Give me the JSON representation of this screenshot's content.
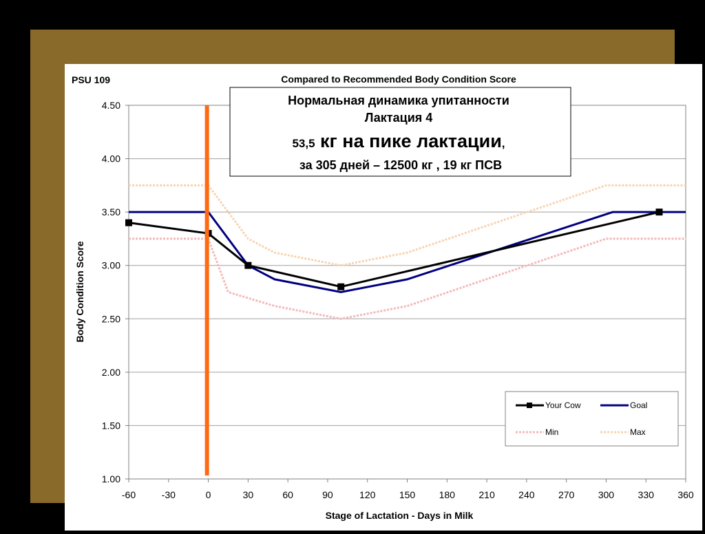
{
  "header": {
    "left_label": "PSU 109"
  },
  "info_box": {
    "line1": "Нормальная динамика упитанности",
    "line2": "Лактация 4",
    "line3_small": "53,5",
    "line3_big": " кг на пике лактации",
    "line3_comma": ",",
    "line4": "за 305 дней – 12500 кг , 19 кг ПСВ"
  },
  "colors": {
    "frame": "#8a6a2a",
    "your_cow": "#000000",
    "goal": "#000080",
    "min": "#f4b8b8",
    "max": "#f8d3b0",
    "marker_line": "#ff6a13",
    "grid": "#a0a0a0"
  },
  "chart_data": {
    "type": "line",
    "title": "Compared to Recommended Body Condition Score",
    "xlabel": "Stage of Lactation - Days in Milk",
    "ylabel": "Body Condition Score",
    "xlim": [
      -60,
      360
    ],
    "ylim": [
      1.0,
      4.5
    ],
    "x_ticks": [
      "-60",
      "-30",
      "0",
      "30",
      "60",
      "90",
      "120",
      "150",
      "180",
      "210",
      "240",
      "270",
      "300",
      "330",
      "360"
    ],
    "y_ticks": [
      "1.00",
      "1.50",
      "2.00",
      "2.50",
      "3.00",
      "3.50",
      "4.00",
      "4.50"
    ],
    "grid": "horizontal",
    "legend_position": "bottom-right",
    "vertical_marker_x": -1,
    "series": [
      {
        "name": "Min",
        "style": "dashed-light",
        "points": [
          [
            -60,
            3.25
          ],
          [
            0,
            3.25
          ],
          [
            15,
            2.75
          ],
          [
            50,
            2.62
          ],
          [
            100,
            2.5
          ],
          [
            150,
            2.62
          ],
          [
            300,
            3.25
          ],
          [
            360,
            3.25
          ]
        ]
      },
      {
        "name": "Max",
        "style": "dashed-light",
        "points": [
          [
            -60,
            3.75
          ],
          [
            0,
            3.75
          ],
          [
            30,
            3.25
          ],
          [
            50,
            3.12
          ],
          [
            100,
            3.0
          ],
          [
            150,
            3.12
          ],
          [
            300,
            3.75
          ],
          [
            360,
            3.75
          ]
        ]
      },
      {
        "name": "Goal",
        "style": "solid",
        "points": [
          [
            -60,
            3.5
          ],
          [
            0,
            3.5
          ],
          [
            30,
            3.0
          ],
          [
            50,
            2.87
          ],
          [
            100,
            2.75
          ],
          [
            150,
            2.87
          ],
          [
            305,
            3.5
          ],
          [
            360,
            3.5
          ]
        ]
      },
      {
        "name": "Your Cow",
        "style": "solid-marker",
        "points": [
          [
            -60,
            3.4
          ],
          [
            0,
            3.3
          ],
          [
            30,
            3.0
          ],
          [
            100,
            2.8
          ],
          [
            340,
            3.5
          ]
        ]
      }
    ]
  }
}
